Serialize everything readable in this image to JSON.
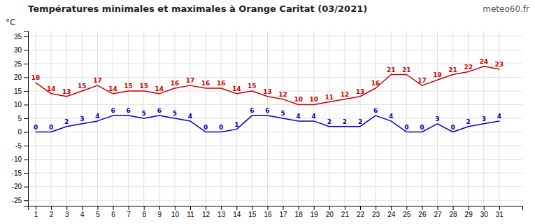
{
  "chart_data": {
    "type": "line",
    "title": "Températures minimales et maximales à Orange Caritat (03/2021)",
    "y_label": "°C",
    "annotations": [
      "meteo60.fr"
    ],
    "x": [
      1,
      2,
      3,
      4,
      5,
      6,
      7,
      8,
      9,
      10,
      11,
      12,
      13,
      14,
      15,
      16,
      17,
      18,
      19,
      20,
      21,
      22,
      23,
      24,
      25,
      26,
      27,
      28,
      29,
      30,
      31
    ],
    "series": [
      {
        "color": "#0000cc",
        "values": [
          0,
          0,
          2,
          3,
          4,
          6,
          6,
          5,
          6,
          5,
          4,
          0,
          0,
          1,
          6,
          6,
          5,
          4,
          4,
          2,
          2,
          2,
          6,
          4,
          0,
          0,
          3,
          0,
          2,
          3,
          4
        ]
      },
      {
        "color": "#cc0000",
        "values": [
          18,
          14,
          13,
          15,
          17,
          14,
          15,
          15,
          14,
          16,
          17,
          16,
          16,
          14,
          15,
          13,
          12,
          10,
          10,
          11,
          12,
          13,
          16,
          21,
          21,
          17,
          19,
          21,
          22,
          24,
          23
        ]
      }
    ],
    "xlim": [
      0.5,
      32.5
    ],
    "xticks": [
      1,
      2,
      3,
      4,
      5,
      6,
      7,
      8,
      9,
      10,
      11,
      12,
      13,
      14,
      15,
      16,
      17,
      18,
      19,
      20,
      21,
      22,
      23,
      24,
      25,
      26,
      27,
      28,
      29,
      30,
      31
    ],
    "ylim": [
      -27,
      37
    ],
    "yticks": [
      -25,
      -20,
      -15,
      -10,
      -5,
      0,
      5,
      10,
      15,
      20,
      25,
      30,
      35
    ],
    "grid": true,
    "data_labels": true
  }
}
